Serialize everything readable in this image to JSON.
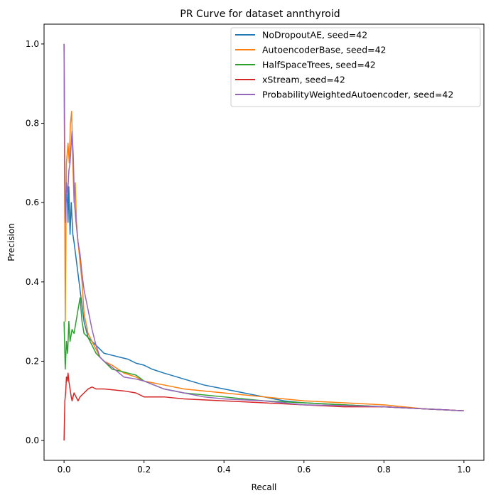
{
  "chart_data": {
    "type": "line",
    "title": "PR Curve for dataset annthyroid",
    "xlabel": "Recall",
    "ylabel": "Precision",
    "xlim": [
      -0.05,
      1.05
    ],
    "ylim": [
      -0.05,
      1.05
    ],
    "xticks": [
      0.0,
      0.2,
      0.4,
      0.6,
      0.8,
      1.0
    ],
    "yticks": [
      0.0,
      0.2,
      0.4,
      0.6,
      0.8,
      1.0
    ],
    "xtick_labels": [
      "0.0",
      "0.2",
      "0.4",
      "0.6",
      "0.8",
      "1.0"
    ],
    "ytick_labels": [
      "0.0",
      "0.2",
      "0.4",
      "0.6",
      "0.8",
      "1.0"
    ],
    "grid": false,
    "legend_position": "top-right",
    "series": [
      {
        "name": "NoDropoutAE, seed=42",
        "color": "#1f77b4",
        "points": [
          [
            0,
            1.0
          ],
          [
            0.002,
            0.55
          ],
          [
            0.005,
            0.6
          ],
          [
            0.008,
            0.62
          ],
          [
            0.01,
            0.55
          ],
          [
            0.012,
            0.64
          ],
          [
            0.015,
            0.52
          ],
          [
            0.018,
            0.6
          ],
          [
            0.02,
            0.56
          ],
          [
            0.022,
            0.52
          ],
          [
            0.025,
            0.5
          ],
          [
            0.03,
            0.46
          ],
          [
            0.035,
            0.42
          ],
          [
            0.04,
            0.38
          ],
          [
            0.045,
            0.34
          ],
          [
            0.05,
            0.3
          ],
          [
            0.06,
            0.26
          ],
          [
            0.07,
            0.25
          ],
          [
            0.08,
            0.24
          ],
          [
            0.09,
            0.23
          ],
          [
            0.1,
            0.22
          ],
          [
            0.12,
            0.215
          ],
          [
            0.14,
            0.21
          ],
          [
            0.16,
            0.205
          ],
          [
            0.18,
            0.195
          ],
          [
            0.2,
            0.19
          ],
          [
            0.22,
            0.18
          ],
          [
            0.25,
            0.17
          ],
          [
            0.3,
            0.155
          ],
          [
            0.35,
            0.14
          ],
          [
            0.4,
            0.13
          ],
          [
            0.45,
            0.12
          ],
          [
            0.5,
            0.11
          ],
          [
            0.55,
            0.1
          ],
          [
            0.6,
            0.095
          ],
          [
            0.7,
            0.09
          ],
          [
            0.8,
            0.085
          ],
          [
            0.9,
            0.08
          ],
          [
            1.0,
            0.075
          ]
        ]
      },
      {
        "name": "AutoencoderBase, seed=42",
        "color": "#ff7f0e",
        "points": [
          [
            0,
            1.0
          ],
          [
            0.003,
            0.3
          ],
          [
            0.006,
            0.7
          ],
          [
            0.01,
            0.75
          ],
          [
            0.013,
            0.7
          ],
          [
            0.016,
            0.8
          ],
          [
            0.019,
            0.83
          ],
          [
            0.022,
            0.7
          ],
          [
            0.025,
            0.6
          ],
          [
            0.028,
            0.65
          ],
          [
            0.031,
            0.55
          ],
          [
            0.035,
            0.5
          ],
          [
            0.04,
            0.45
          ],
          [
            0.045,
            0.4
          ],
          [
            0.05,
            0.32
          ],
          [
            0.06,
            0.27
          ],
          [
            0.07,
            0.25
          ],
          [
            0.08,
            0.23
          ],
          [
            0.09,
            0.21
          ],
          [
            0.1,
            0.2
          ],
          [
            0.12,
            0.19
          ],
          [
            0.15,
            0.17
          ],
          [
            0.18,
            0.16
          ],
          [
            0.2,
            0.15
          ],
          [
            0.25,
            0.14
          ],
          [
            0.3,
            0.13
          ],
          [
            0.35,
            0.125
          ],
          [
            0.4,
            0.12
          ],
          [
            0.5,
            0.11
          ],
          [
            0.6,
            0.1
          ],
          [
            0.7,
            0.095
          ],
          [
            0.8,
            0.09
          ],
          [
            0.9,
            0.08
          ],
          [
            1.0,
            0.075
          ]
        ]
      },
      {
        "name": "HalfSpaceTrees, seed=42",
        "color": "#2ca02c",
        "points": [
          [
            0,
            0.3
          ],
          [
            0.003,
            0.18
          ],
          [
            0.006,
            0.25
          ],
          [
            0.009,
            0.22
          ],
          [
            0.012,
            0.3
          ],
          [
            0.015,
            0.25
          ],
          [
            0.02,
            0.28
          ],
          [
            0.025,
            0.27
          ],
          [
            0.03,
            0.3
          ],
          [
            0.035,
            0.33
          ],
          [
            0.04,
            0.36
          ],
          [
            0.045,
            0.3
          ],
          [
            0.05,
            0.27
          ],
          [
            0.06,
            0.26
          ],
          [
            0.07,
            0.24
          ],
          [
            0.08,
            0.22
          ],
          [
            0.1,
            0.2
          ],
          [
            0.12,
            0.18
          ],
          [
            0.14,
            0.175
          ],
          [
            0.16,
            0.17
          ],
          [
            0.18,
            0.165
          ],
          [
            0.2,
            0.15
          ],
          [
            0.25,
            0.13
          ],
          [
            0.3,
            0.12
          ],
          [
            0.4,
            0.11
          ],
          [
            0.5,
            0.1
          ],
          [
            0.6,
            0.095
          ],
          [
            0.7,
            0.09
          ],
          [
            0.8,
            0.085
          ],
          [
            0.9,
            0.08
          ],
          [
            1.0,
            0.075
          ]
        ]
      },
      {
        "name": "xStream, seed=42",
        "color": "#d62728",
        "points": [
          [
            0,
            0.0
          ],
          [
            0.002,
            0.1
          ],
          [
            0.004,
            0.12
          ],
          [
            0.006,
            0.16
          ],
          [
            0.008,
            0.15
          ],
          [
            0.01,
            0.17
          ],
          [
            0.012,
            0.15
          ],
          [
            0.015,
            0.13
          ],
          [
            0.018,
            0.11
          ],
          [
            0.02,
            0.1
          ],
          [
            0.025,
            0.12
          ],
          [
            0.03,
            0.11
          ],
          [
            0.035,
            0.1
          ],
          [
            0.04,
            0.11
          ],
          [
            0.05,
            0.12
          ],
          [
            0.06,
            0.13
          ],
          [
            0.07,
            0.135
          ],
          [
            0.08,
            0.13
          ],
          [
            0.1,
            0.13
          ],
          [
            0.12,
            0.128
          ],
          [
            0.15,
            0.125
          ],
          [
            0.18,
            0.12
          ],
          [
            0.2,
            0.11
          ],
          [
            0.25,
            0.11
          ],
          [
            0.3,
            0.105
          ],
          [
            0.4,
            0.1
          ],
          [
            0.5,
            0.095
          ],
          [
            0.6,
            0.09
          ],
          [
            0.7,
            0.085
          ],
          [
            0.8,
            0.085
          ],
          [
            0.9,
            0.08
          ],
          [
            1.0,
            0.075
          ]
        ]
      },
      {
        "name": "ProbabilityWeightedAutoencoder, seed=42",
        "color": "#9467bd",
        "points": [
          [
            0,
            1.0
          ],
          [
            0.003,
            0.55
          ],
          [
            0.006,
            0.65
          ],
          [
            0.009,
            0.62
          ],
          [
            0.012,
            0.68
          ],
          [
            0.015,
            0.7
          ],
          [
            0.018,
            0.75
          ],
          [
            0.02,
            0.78
          ],
          [
            0.023,
            0.72
          ],
          [
            0.026,
            0.6
          ],
          [
            0.03,
            0.55
          ],
          [
            0.035,
            0.5
          ],
          [
            0.04,
            0.47
          ],
          [
            0.045,
            0.42
          ],
          [
            0.05,
            0.38
          ],
          [
            0.06,
            0.33
          ],
          [
            0.07,
            0.28
          ],
          [
            0.08,
            0.24
          ],
          [
            0.09,
            0.21
          ],
          [
            0.1,
            0.2
          ],
          [
            0.12,
            0.185
          ],
          [
            0.15,
            0.16
          ],
          [
            0.18,
            0.155
          ],
          [
            0.2,
            0.15
          ],
          [
            0.25,
            0.13
          ],
          [
            0.3,
            0.12
          ],
          [
            0.35,
            0.11
          ],
          [
            0.4,
            0.105
          ],
          [
            0.5,
            0.1
          ],
          [
            0.6,
            0.09
          ],
          [
            0.7,
            0.088
          ],
          [
            0.8,
            0.085
          ],
          [
            0.9,
            0.08
          ],
          [
            1.0,
            0.075
          ]
        ]
      }
    ]
  }
}
